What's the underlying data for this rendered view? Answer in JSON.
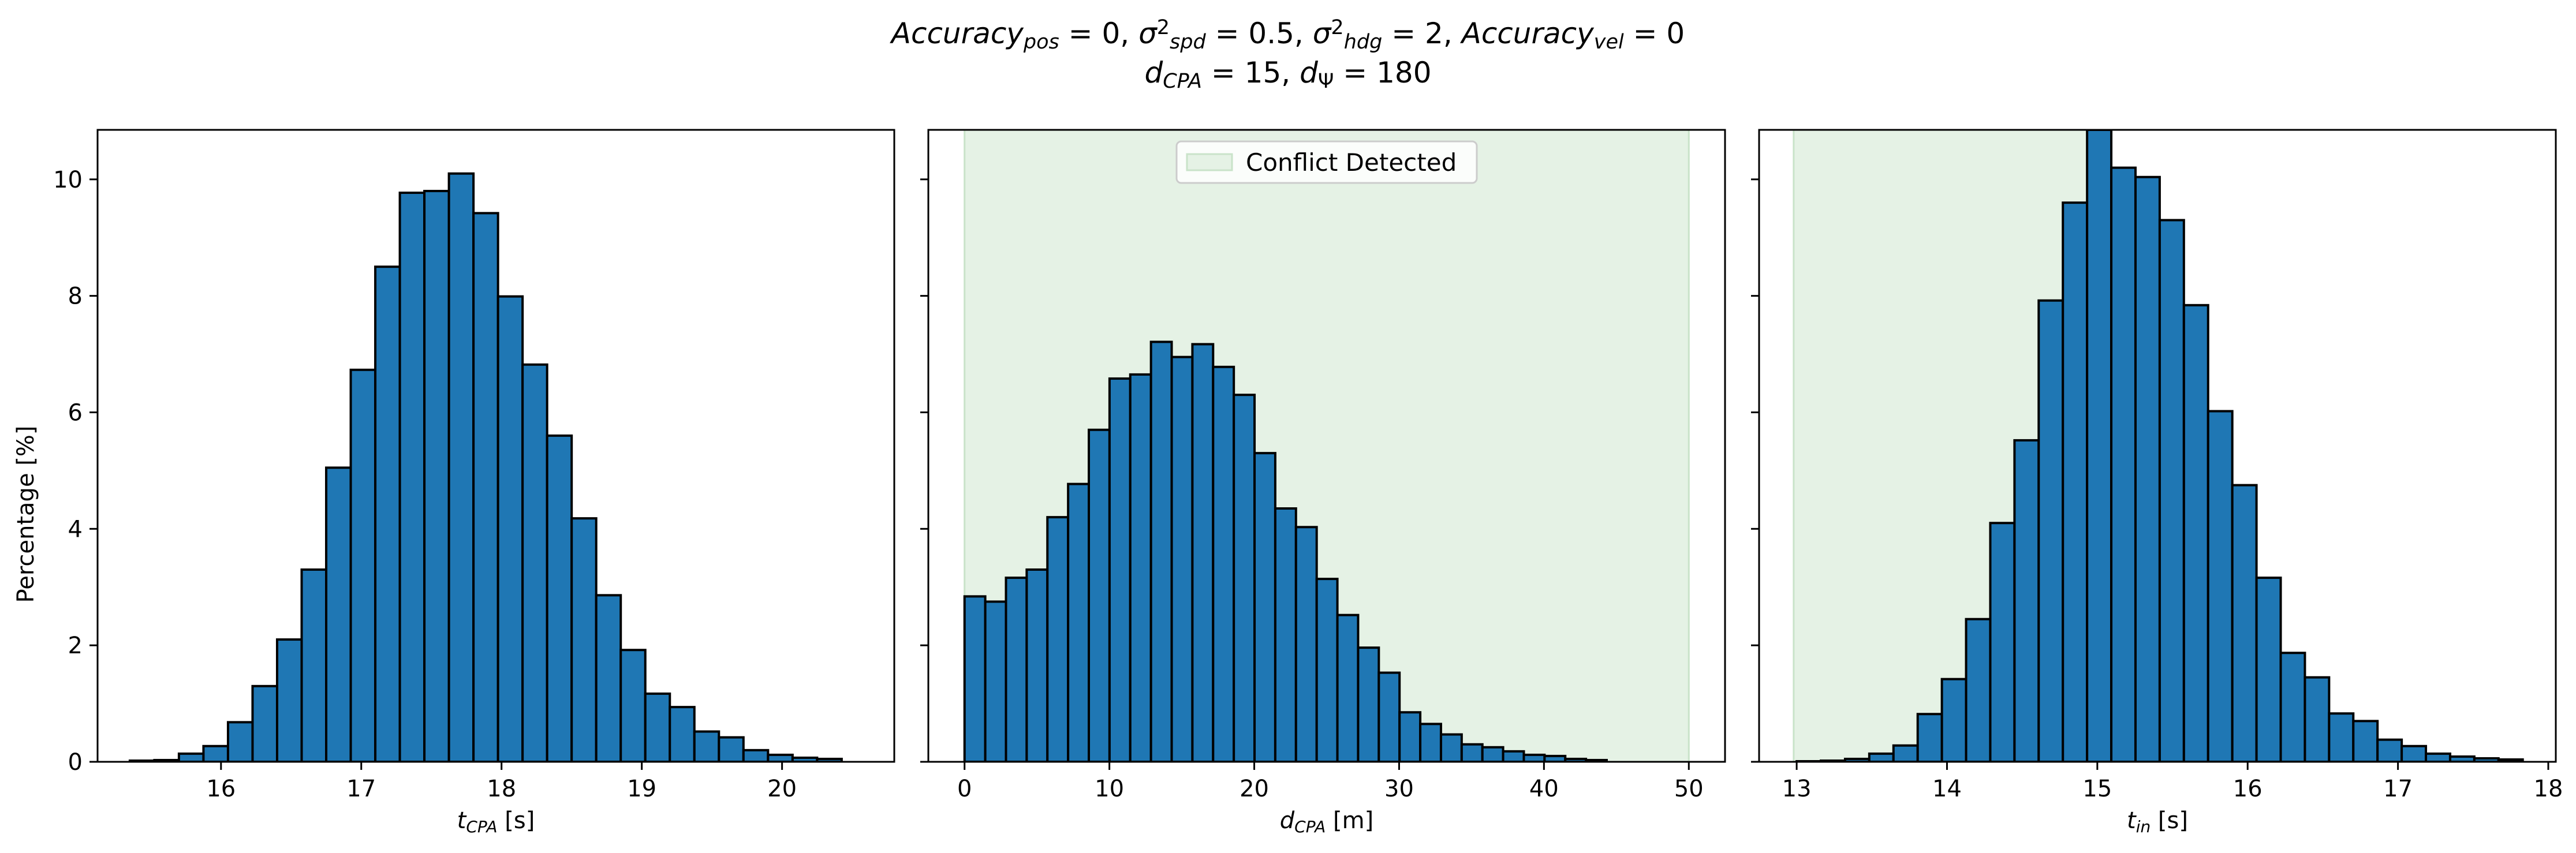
{
  "title": {
    "line1_parts": [
      {
        "t": "Accuracy",
        "i": true
      },
      {
        "t": "pos",
        "i": true,
        "s": "sub"
      },
      {
        "t": " = 0, "
      },
      {
        "t": "σ",
        "i": true
      },
      {
        "t": "2",
        "s": "sup"
      },
      {
        "t": "spd",
        "i": true,
        "s": "sub"
      },
      {
        "t": " = 0.5, "
      },
      {
        "t": "σ",
        "i": true
      },
      {
        "t": "2",
        "s": "sup"
      },
      {
        "t": "hdg",
        "i": true,
        "s": "sub"
      },
      {
        "t": " = 2, "
      },
      {
        "t": "Accuracy",
        "i": true
      },
      {
        "t": "vel",
        "i": true,
        "s": "sub"
      },
      {
        "t": " = 0"
      }
    ],
    "line2_parts": [
      {
        "t": "d",
        "i": true
      },
      {
        "t": "CPA",
        "i": true,
        "s": "sub"
      },
      {
        "t": " = 15, "
      },
      {
        "t": "d",
        "i": true
      },
      {
        "t": "Ψ",
        "s": "sub"
      },
      {
        "t": " = 180"
      }
    ]
  },
  "shared_ylabel": "Percentage [%]",
  "colors": {
    "bar_fill": "#1f77b4",
    "bar_edge": "#000000",
    "conflict_region": "#e5f2e5",
    "conflict_region_edge": "#c9e3c9"
  },
  "chart_data": [
    {
      "type": "bar",
      "name": "tcpa-histogram",
      "xlabel_parts": [
        {
          "t": "t",
          "i": true
        },
        {
          "t": "CPA",
          "i": true,
          "s": "sub"
        },
        {
          "t": " [s]"
        }
      ],
      "xlim": [
        15.12,
        20.8
      ],
      "ylim": [
        0,
        10.85
      ],
      "xticks": [
        16,
        17,
        18,
        19,
        20
      ],
      "yticks": [
        0,
        2,
        4,
        6,
        8,
        10
      ],
      "show_yticklabels": true,
      "bin_start": 15.35,
      "bin_width": 0.175,
      "values": [
        0.02,
        0.03,
        0.14,
        0.27,
        0.68,
        1.3,
        2.1,
        3.3,
        5.05,
        6.73,
        8.5,
        9.77,
        9.8,
        10.1,
        9.42,
        7.99,
        6.82,
        5.6,
        4.18,
        2.86,
        1.92,
        1.17,
        0.94,
        0.52,
        0.42,
        0.2,
        0.12,
        0.07,
        0.05
      ]
    },
    {
      "type": "bar",
      "name": "dcpa-histogram",
      "xlabel_parts": [
        {
          "t": "d",
          "i": true
        },
        {
          "t": "CPA",
          "i": true,
          "s": "sub"
        },
        {
          "t": " [m]"
        }
      ],
      "xlim": [
        -2.5,
        52.5
      ],
      "ylim": [
        0,
        10.85
      ],
      "xticks": [
        0,
        10,
        20,
        30,
        40,
        50
      ],
      "yticks": [
        0,
        2,
        4,
        6,
        8,
        10
      ],
      "show_yticklabels": false,
      "conflict_region": [
        0,
        50
      ],
      "legend": {
        "label": "Conflict Detected",
        "position": "top-center"
      },
      "bin_start": 0,
      "bin_width": 1.43,
      "values": [
        2.84,
        2.75,
        3.16,
        3.3,
        4.2,
        4.77,
        5.7,
        6.58,
        6.65,
        7.21,
        6.95,
        7.17,
        6.78,
        6.3,
        5.3,
        4.35,
        4.03,
        3.14,
        2.52,
        1.96,
        1.53,
        0.85,
        0.65,
        0.47,
        0.3,
        0.25,
        0.18,
        0.12,
        0.1,
        0.05,
        0.03
      ]
    },
    {
      "type": "bar",
      "name": "tin-histogram",
      "xlabel_parts": [
        {
          "t": "t",
          "i": true
        },
        {
          "t": "in",
          "i": true,
          "s": "sub"
        },
        {
          "t": " [s]"
        }
      ],
      "xlim": [
        12.75,
        18.05
      ],
      "ylim": [
        0,
        10.85
      ],
      "xticks": [
        13,
        14,
        15,
        16,
        17,
        18
      ],
      "yticks": [
        0,
        2,
        4,
        6,
        8,
        10
      ],
      "show_yticklabels": false,
      "conflict_region": [
        12.98,
        15.0
      ],
      "bin_start": 13.0,
      "bin_width": 0.161,
      "values": [
        0.01,
        0.02,
        0.05,
        0.14,
        0.28,
        0.82,
        1.42,
        2.45,
        4.1,
        5.52,
        7.92,
        9.6,
        10.85,
        10.2,
        10.04,
        9.3,
        7.84,
        6.02,
        4.75,
        3.16,
        1.87,
        1.45,
        0.83,
        0.7,
        0.38,
        0.27,
        0.14,
        0.09,
        0.06,
        0.04
      ]
    }
  ]
}
